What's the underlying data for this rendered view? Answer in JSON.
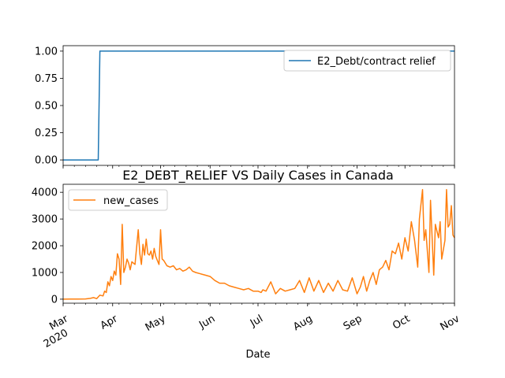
{
  "figure_title": "E2_DEBT_RELIEF VS Daily Cases in Canada",
  "xlabel": "Date",
  "colors": {
    "series1": "#1f77b4",
    "series2": "#ff7f0e"
  },
  "chart_data": [
    {
      "type": "line",
      "title": "",
      "series": [
        {
          "name": "E2_Debt/contract relief",
          "x": [
            "2020-03-01",
            "2020-03-23",
            "2020-03-24",
            "2020-11-01"
          ],
          "values": [
            0,
            0,
            1,
            1
          ]
        }
      ],
      "yticks": [
        "0.00",
        "0.25",
        "0.50",
        "0.75",
        "1.00"
      ],
      "ylim": [
        -0.05,
        1.05
      ],
      "xlim": [
        "2020-03-01",
        "2020-11-01"
      ],
      "legend": "top-right",
      "grid": false
    },
    {
      "type": "line",
      "title": "E2_DEBT_RELIEF VS Daily Cases in Canada",
      "series": [
        {
          "name": "new_cases",
          "x": [
            "2020-03-01",
            "2020-03-05",
            "2020-03-10",
            "2020-03-15",
            "2020-03-18",
            "2020-03-20",
            "2020-03-22",
            "2020-03-24",
            "2020-03-26",
            "2020-03-27",
            "2020-03-28",
            "2020-03-29",
            "2020-03-30",
            "2020-03-31",
            "2020-04-01",
            "2020-04-02",
            "2020-04-03",
            "2020-04-04",
            "2020-04-05",
            "2020-04-06",
            "2020-04-07",
            "2020-04-08",
            "2020-04-09",
            "2020-04-10",
            "2020-04-11",
            "2020-04-12",
            "2020-04-13",
            "2020-04-15",
            "2020-04-17",
            "2020-04-18",
            "2020-04-19",
            "2020-04-20",
            "2020-04-21",
            "2020-04-22",
            "2020-04-23",
            "2020-04-24",
            "2020-04-25",
            "2020-04-26",
            "2020-04-27",
            "2020-04-28",
            "2020-04-29",
            "2020-04-30",
            "2020-05-01",
            "2020-05-02",
            "2020-05-03",
            "2020-05-05",
            "2020-05-07",
            "2020-05-09",
            "2020-05-11",
            "2020-05-13",
            "2020-05-15",
            "2020-05-17",
            "2020-05-19",
            "2020-05-21",
            "2020-05-23",
            "2020-05-26",
            "2020-05-29",
            "2020-06-01",
            "2020-06-04",
            "2020-06-07",
            "2020-06-10",
            "2020-06-13",
            "2020-06-16",
            "2020-06-19",
            "2020-06-22",
            "2020-06-25",
            "2020-06-28",
            "2020-07-01",
            "2020-07-03",
            "2020-07-04",
            "2020-07-06",
            "2020-07-09",
            "2020-07-12",
            "2020-07-15",
            "2020-07-18",
            "2020-07-21",
            "2020-07-24",
            "2020-07-27",
            "2020-07-30",
            "2020-08-02",
            "2020-08-05",
            "2020-08-08",
            "2020-08-11",
            "2020-08-14",
            "2020-08-17",
            "2020-08-20",
            "2020-08-23",
            "2020-08-26",
            "2020-08-29",
            "2020-09-01",
            "2020-09-03",
            "2020-09-05",
            "2020-09-07",
            "2020-09-09",
            "2020-09-11",
            "2020-09-13",
            "2020-09-15",
            "2020-09-17",
            "2020-09-19",
            "2020-09-21",
            "2020-09-23",
            "2020-09-25",
            "2020-09-27",
            "2020-09-29",
            "2020-10-01",
            "2020-10-03",
            "2020-10-05",
            "2020-10-07",
            "2020-10-09",
            "2020-10-10",
            "2020-10-12",
            "2020-10-13",
            "2020-10-14",
            "2020-10-16",
            "2020-10-17",
            "2020-10-19",
            "2020-10-20",
            "2020-10-22",
            "2020-10-23",
            "2020-10-24",
            "2020-10-26",
            "2020-10-27",
            "2020-10-28",
            "2020-10-29",
            "2020-10-30",
            "2020-10-31",
            "2020-11-01"
          ],
          "values": [
            0,
            2,
            5,
            10,
            30,
            60,
            20,
            150,
            120,
            300,
            250,
            650,
            500,
            850,
            700,
            1050,
            900,
            1700,
            1500,
            550,
            2800,
            1000,
            1200,
            1500,
            1350,
            1100,
            1400,
            1300,
            2600,
            1700,
            1300,
            2050,
            1650,
            2250,
            1700,
            1650,
            1800,
            1500,
            1900,
            1600,
            1450,
            1300,
            2600,
            1500,
            1450,
            1250,
            1200,
            1250,
            1100,
            1150,
            1050,
            1100,
            1200,
            1050,
            1000,
            950,
            900,
            850,
            700,
            600,
            600,
            500,
            450,
            400,
            350,
            400,
            300,
            300,
            250,
            350,
            300,
            650,
            200,
            400,
            300,
            350,
            400,
            700,
            250,
            800,
            300,
            700,
            250,
            600,
            300,
            700,
            350,
            300,
            800,
            200,
            450,
            850,
            300,
            700,
            1000,
            550,
            1100,
            1200,
            1450,
            1100,
            1800,
            1700,
            2100,
            1500,
            2300,
            1800,
            2900,
            2200,
            1200,
            3000,
            4100,
            2200,
            2600,
            1000,
            3700,
            900,
            2800,
            2300,
            2900,
            1500,
            2200,
            4100,
            2700,
            2800,
            3500,
            2400,
            2300
          ],
          "ytick_values": [
            0,
            1000,
            2000,
            3000,
            4000
          ]
        }
      ],
      "yticks": [
        "0",
        "1000",
        "2000",
        "3000",
        "4000"
      ],
      "ylim": [
        -150,
        4300
      ],
      "xlim": [
        "2020-03-01",
        "2020-11-01"
      ],
      "legend": "top-left",
      "grid": false
    }
  ],
  "x_axis": {
    "ticks": [
      {
        "date": "2020-03-01",
        "label": "Mar",
        "sublabel": "2020"
      },
      {
        "date": "2020-04-01",
        "label": "Apr"
      },
      {
        "date": "2020-05-01",
        "label": "May"
      },
      {
        "date": "2020-06-01",
        "label": "Jun"
      },
      {
        "date": "2020-07-01",
        "label": "Jul"
      },
      {
        "date": "2020-08-01",
        "label": "Aug"
      },
      {
        "date": "2020-09-01",
        "label": "Sep"
      },
      {
        "date": "2020-10-01",
        "label": "Oct"
      },
      {
        "date": "2020-11-01",
        "label": "Nov"
      }
    ]
  }
}
